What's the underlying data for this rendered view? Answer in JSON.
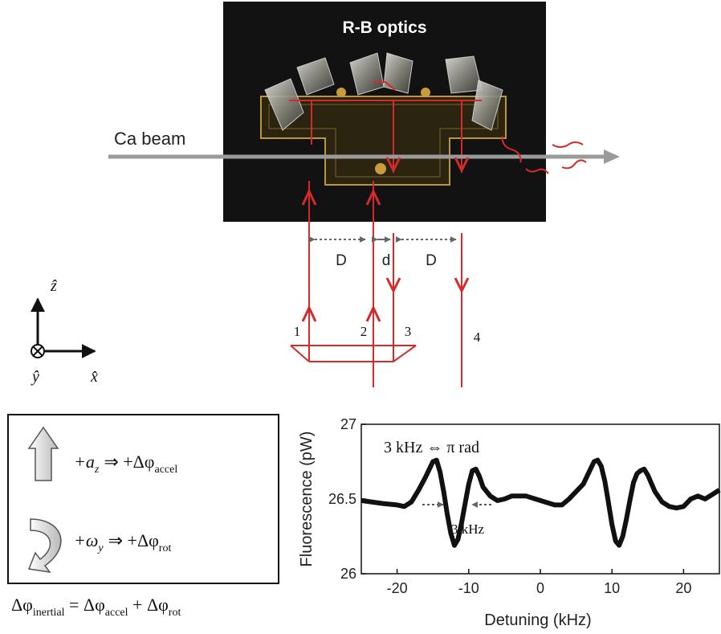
{
  "photo": {
    "title": "R-B optics",
    "beam_label": "Ca beam"
  },
  "spacings": {
    "left": "D",
    "middle": "d",
    "right": "D"
  },
  "beam_numbers": [
    "1",
    "2",
    "3",
    "4"
  ],
  "axes": {
    "z": "ẑ",
    "y": "ŷ",
    "x": "x̂"
  },
  "legend": {
    "accel_lhs": "+a",
    "accel_sub": "z",
    "accel_rhs": "⇒ +Δφ",
    "accel_rhs_sub": "accel",
    "rot_lhs": "+ω",
    "rot_sub": "y",
    "rot_rhs": "⇒ +Δφ",
    "rot_rhs_sub": "rot",
    "equation_lhs": "Δφ",
    "equation_lhs_sub": "inertial",
    "equation_eq": " = Δφ",
    "equation_mid_sub": "accel",
    "equation_plus": " + Δφ",
    "equation_rhs_sub": "rot"
  },
  "colors": {
    "beam": "#d42a2a",
    "photo_bg": "#121212",
    "trace": "#111111",
    "atom_beam": "#9a9a9a"
  },
  "chart_data": {
    "type": "line",
    "title": "",
    "xlabel": "Detuning (kHz)",
    "ylabel": "Fluorescence (pW)",
    "xlim": [
      -25,
      25
    ],
    "ylim": [
      26,
      27
    ],
    "xticks": [
      -20,
      -10,
      0,
      10,
      20
    ],
    "yticks": [
      26,
      26.5,
      27
    ],
    "ytick_labels": [
      "26",
      "26.5",
      "27"
    ],
    "annotations": [
      "3 kHz  ⇔ π rad",
      "3 kHz"
    ],
    "series": [
      {
        "x": [
          -25,
          -22,
          -20,
          -19,
          -18,
          -17,
          -16,
          -15,
          -14.5,
          -14,
          -13.5,
          -13,
          -12.5,
          -12,
          -11.5,
          -11,
          -10.5,
          -10,
          -9.5,
          -9,
          -8.5,
          -8,
          -7,
          -6,
          -5,
          -4,
          -2,
          0,
          2,
          3,
          4,
          5,
          6,
          7,
          7.5,
          8,
          8.5,
          9,
          9.5,
          10,
          10.5,
          11,
          11.5,
          12,
          12.5,
          13,
          13.5,
          14,
          14.5,
          15,
          16,
          17,
          18,
          19,
          20,
          21,
          22,
          23,
          24,
          25
        ],
        "y": [
          26.49,
          26.47,
          26.46,
          26.45,
          26.48,
          26.56,
          26.65,
          26.75,
          26.76,
          26.68,
          26.55,
          26.4,
          26.27,
          26.19,
          26.23,
          26.34,
          26.47,
          26.6,
          26.69,
          26.7,
          26.65,
          26.58,
          26.52,
          26.49,
          26.5,
          26.52,
          26.52,
          26.49,
          26.46,
          26.46,
          26.5,
          26.55,
          26.6,
          26.7,
          26.75,
          26.76,
          26.72,
          26.62,
          26.48,
          26.33,
          26.22,
          26.19,
          26.25,
          26.36,
          26.49,
          26.61,
          26.67,
          26.69,
          26.7,
          26.66,
          26.55,
          26.48,
          26.45,
          26.44,
          26.45,
          26.5,
          26.52,
          26.5,
          26.53,
          26.56
        ]
      }
    ]
  }
}
